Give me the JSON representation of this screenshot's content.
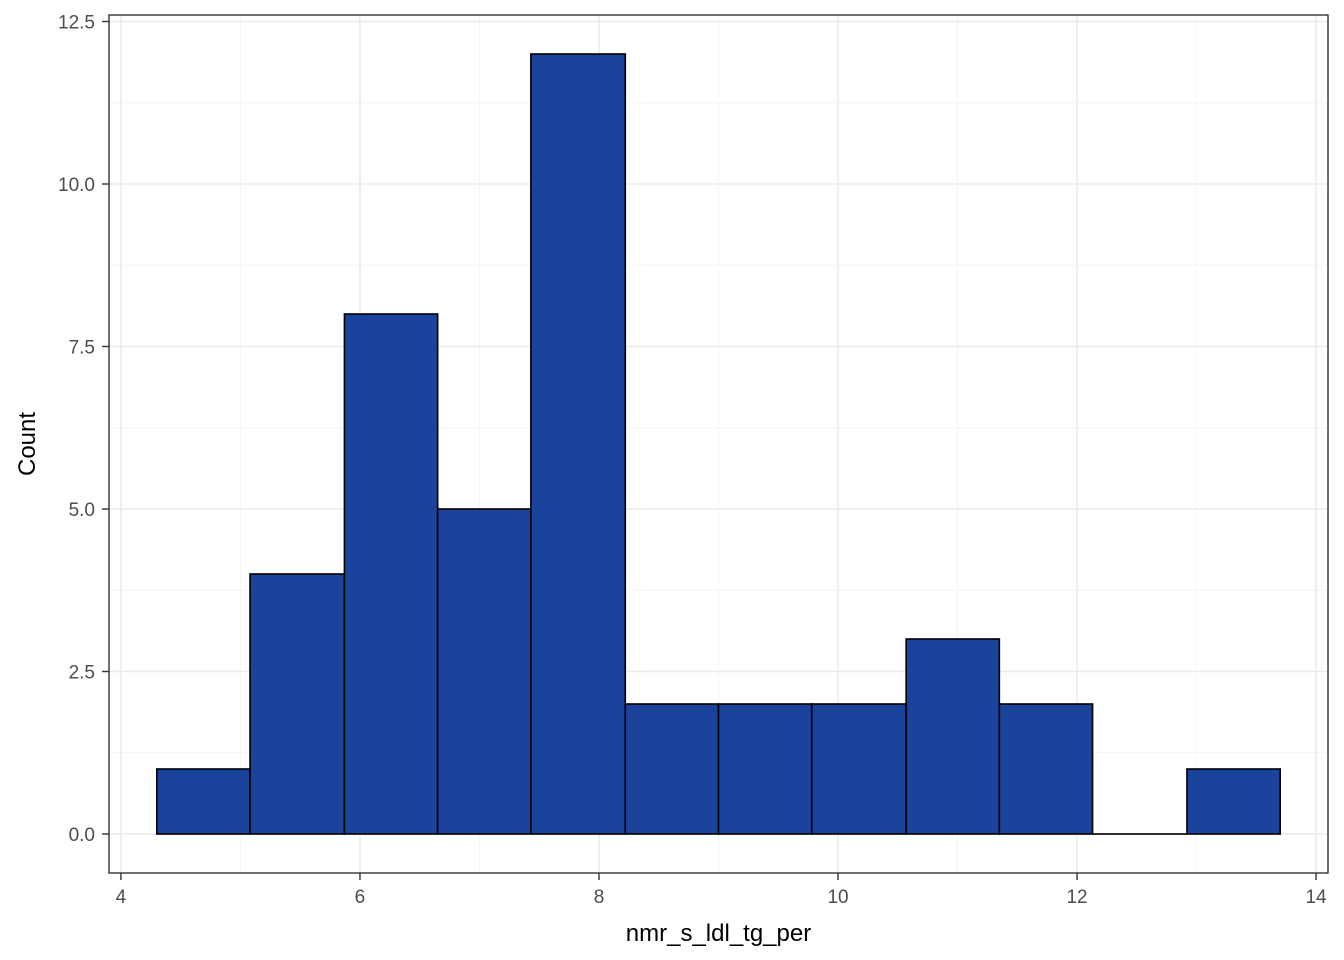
{
  "chart_data": {
    "type": "bar",
    "subtype": "histogram",
    "xlabel": "nmr_s_ldl_tg_per",
    "ylabel": "Count",
    "xlim": [
      3.9,
      14.1
    ],
    "ylim": [
      -0.6,
      12.6
    ],
    "x_ticks": [
      4,
      6,
      8,
      10,
      12,
      14
    ],
    "x_tick_labels": [
      "4",
      "6",
      "8",
      "10",
      "12",
      "14"
    ],
    "y_ticks": [
      0,
      2.5,
      5,
      7.5,
      10,
      12.5
    ],
    "y_tick_labels": [
      "0.0",
      "2.5",
      "5.0",
      "7.5",
      "10.0",
      "12.5"
    ],
    "bins": [
      {
        "x0": 4.3,
        "x1": 5.08,
        "count": 1
      },
      {
        "x0": 5.08,
        "x1": 5.87,
        "count": 4
      },
      {
        "x0": 5.87,
        "x1": 6.65,
        "count": 8
      },
      {
        "x0": 6.65,
        "x1": 7.43,
        "count": 5
      },
      {
        "x0": 7.43,
        "x1": 8.22,
        "count": 12
      },
      {
        "x0": 8.22,
        "x1": 9.0,
        "count": 2
      },
      {
        "x0": 9.0,
        "x1": 9.78,
        "count": 2
      },
      {
        "x0": 9.78,
        "x1": 10.57,
        "count": 2
      },
      {
        "x0": 10.57,
        "x1": 11.35,
        "count": 3
      },
      {
        "x0": 11.35,
        "x1": 12.13,
        "count": 2
      },
      {
        "x0": 12.13,
        "x1": 12.92,
        "count": 0
      },
      {
        "x0": 12.92,
        "x1": 13.7,
        "count": 1
      }
    ],
    "bar_fill": "#1a439b",
    "bar_outline": "#000000",
    "grid": true,
    "legend": "none",
    "theme": "bw"
  }
}
